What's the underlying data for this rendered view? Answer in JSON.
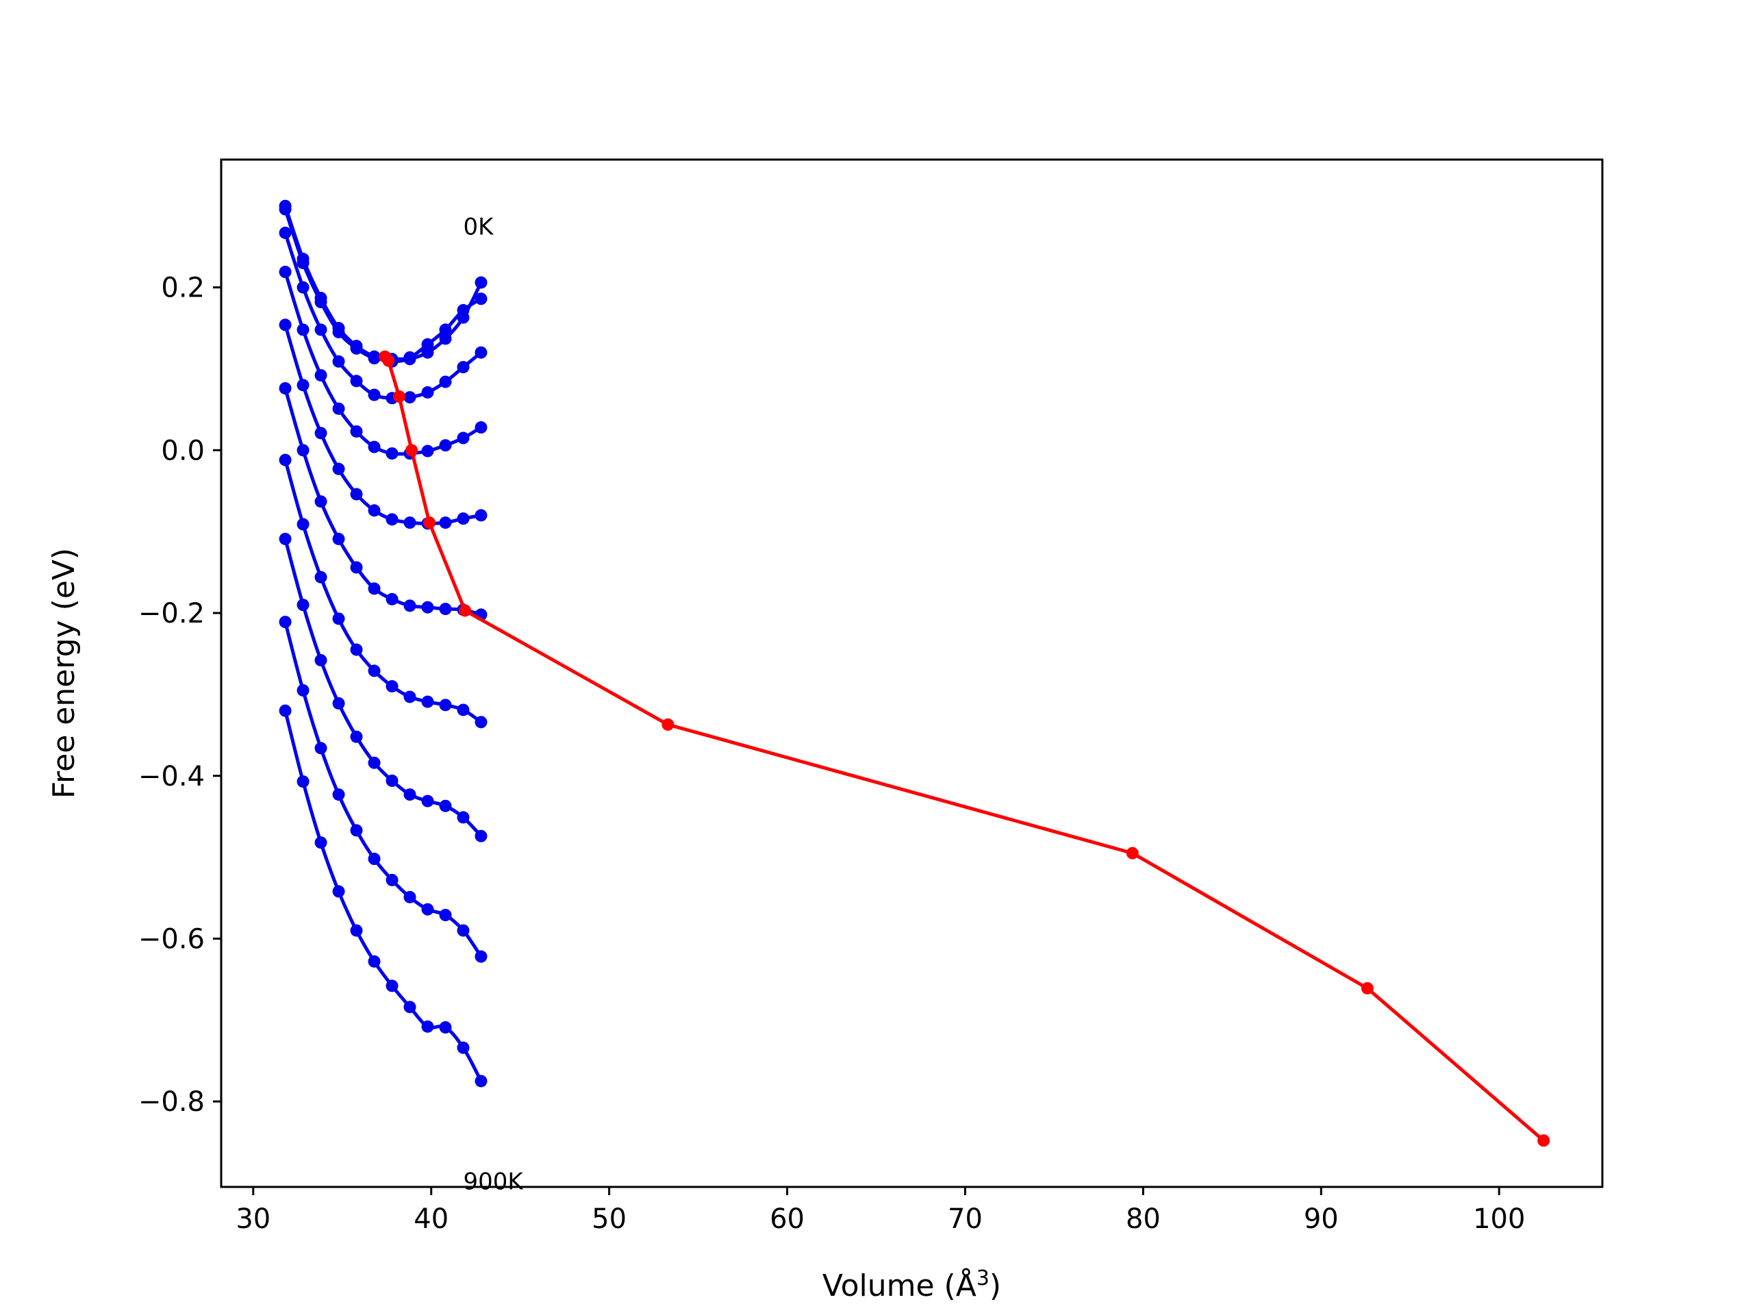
{
  "chart_data": {
    "type": "line",
    "title": "",
    "xlabel": "Volume (Å",
    "xlabel_sup": "3",
    "xlabel_end": ")",
    "ylabel": "Free energy (eV)",
    "xlim": [
      28.2,
      105.8
    ],
    "ylim": [
      -0.905,
      0.357
    ],
    "xticks": [
      30,
      40,
      50,
      60,
      70,
      80,
      90,
      100
    ],
    "xtick_labels": [
      "30",
      "40",
      "50",
      "60",
      "70",
      "80",
      "90",
      "100"
    ],
    "yticks": [
      0.2,
      0.0,
      -0.2,
      -0.4,
      -0.6,
      -0.8
    ],
    "ytick_labels": [
      "0.2",
      "0.0",
      "−0.2",
      "−0.4",
      "−0.6",
      "−0.8"
    ],
    "grid": false,
    "legend": "none",
    "colors": {
      "isotherms": "#0000ee",
      "minimum_path": "#ff0000"
    },
    "annotations": [
      {
        "text": "0K",
        "x": 41.8,
        "y": 0.265
      },
      {
        "text": "900K",
        "x": 41.8,
        "y": -0.908
      }
    ],
    "volumes": [
      31.8,
      32.8,
      33.8,
      34.8,
      35.8,
      36.8,
      37.8,
      38.8,
      39.8,
      40.8,
      41.8,
      42.8
    ],
    "isotherms": [
      [
        0.3,
        0.235,
        0.187,
        0.15,
        0.128,
        0.115,
        0.109,
        0.112,
        0.12,
        0.137,
        0.163,
        0.206
      ],
      [
        0.296,
        0.23,
        0.182,
        0.145,
        0.125,
        0.113,
        0.112,
        0.114,
        0.13,
        0.148,
        0.172,
        0.186
      ],
      [
        0.267,
        0.2,
        0.148,
        0.109,
        0.085,
        0.068,
        0.064,
        0.065,
        0.071,
        0.084,
        0.102,
        0.12
      ],
      [
        0.219,
        0.148,
        0.092,
        0.051,
        0.023,
        0.004,
        -0.004,
        -0.004,
        -0.001,
        0.006,
        0.015,
        0.028
      ],
      [
        0.154,
        0.08,
        0.021,
        -0.023,
        -0.054,
        -0.074,
        -0.085,
        -0.089,
        -0.09,
        -0.089,
        -0.084,
        -0.08
      ],
      [
        0.076,
        0.0,
        -0.063,
        -0.109,
        -0.144,
        -0.17,
        -0.183,
        -0.191,
        -0.193,
        -0.195,
        -0.196,
        -0.202
      ],
      [
        -0.012,
        -0.091,
        -0.156,
        -0.207,
        -0.245,
        -0.271,
        -0.29,
        -0.303,
        -0.309,
        -0.313,
        -0.319,
        -0.334
      ],
      [
        -0.109,
        -0.19,
        -0.258,
        -0.311,
        -0.352,
        -0.384,
        -0.406,
        -0.423,
        -0.431,
        -0.437,
        -0.451,
        -0.474
      ],
      [
        -0.211,
        -0.295,
        -0.366,
        -0.423,
        -0.467,
        -0.502,
        -0.528,
        -0.549,
        -0.564,
        -0.571,
        -0.59,
        -0.622
      ],
      [
        -0.32,
        -0.407,
        -0.482,
        -0.542,
        -0.59,
        -0.628,
        -0.658,
        -0.684,
        -0.708,
        -0.709,
        -0.734,
        -0.775
      ]
    ],
    "minimum_path": {
      "x": [
        37.4,
        37.6,
        38.2,
        38.9,
        39.9,
        41.9,
        53.3,
        79.4,
        92.6,
        102.5
      ],
      "y": [
        0.115,
        0.11,
        0.066,
        0.0,
        -0.089,
        -0.197,
        -0.337,
        -0.495,
        -0.661,
        -0.848
      ]
    }
  }
}
